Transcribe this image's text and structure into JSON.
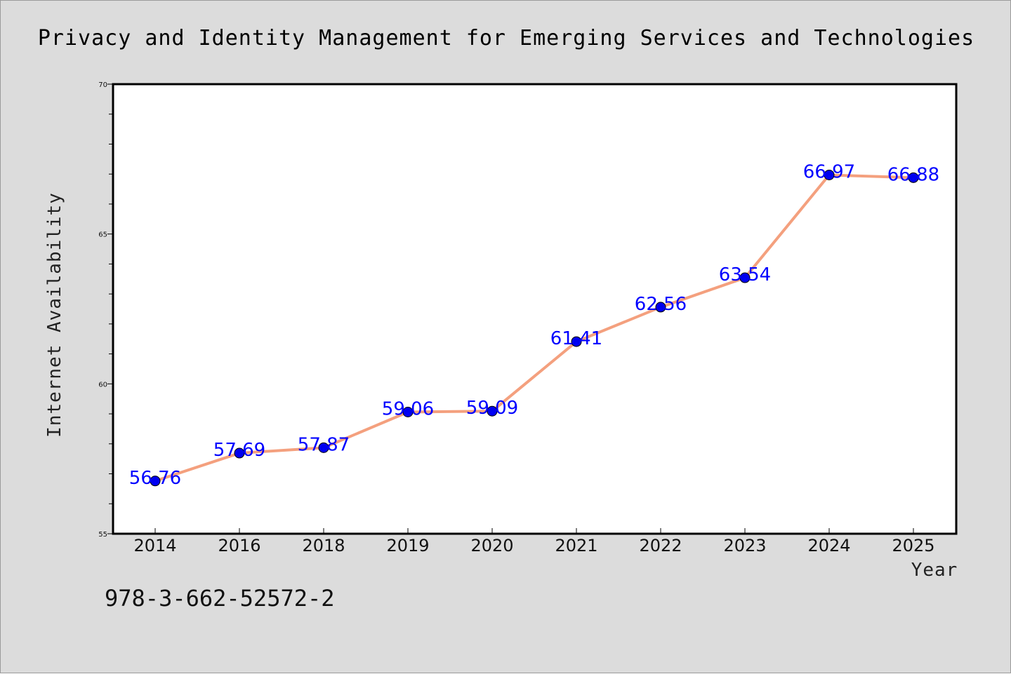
{
  "chart_data": {
    "type": "line",
    "title": "Privacy and Identity Management for Emerging Services and Technologies",
    "xlabel": "Year",
    "ylabel": "Internet Availability",
    "categories": [
      "2014",
      "2016",
      "2018",
      "2019",
      "2020",
      "2021",
      "2022",
      "2023",
      "2024",
      "2025"
    ],
    "values": [
      56.76,
      57.69,
      57.87,
      59.06,
      59.09,
      61.41,
      62.56,
      63.54,
      66.97,
      66.88
    ],
    "data_labels": [
      "56.76",
      "57.69",
      "57.87",
      "59.06",
      "59.09",
      "61.41",
      "62.56",
      "63.54",
      "66.97",
      "66.88"
    ],
    "ylim": [
      55,
      70
    ],
    "yticks": [
      55,
      60,
      65,
      70
    ],
    "yminor_step": 1,
    "grid": false,
    "legend": "none",
    "colors": {
      "line": "#f4a07e",
      "marker": "#0000ee",
      "data_label": "#0000ff",
      "background": "#dcdcdc",
      "plot_background": "#ffffff"
    }
  },
  "footer": {
    "isbn": "978-3-662-52572-2"
  }
}
